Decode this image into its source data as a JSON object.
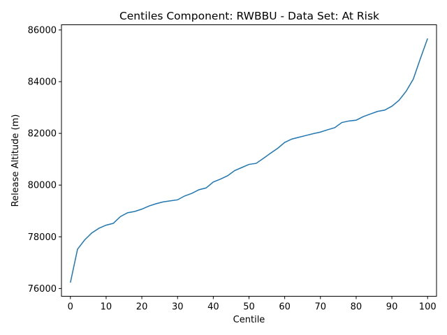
{
  "chart_data": {
    "type": "line",
    "title": "Centiles Component: RWBBU - Data Set: At Risk",
    "xlabel": "Centile",
    "ylabel": "Release Altitude (m)",
    "xlim": [
      -2.5,
      102.5
    ],
    "ylim": [
      75700,
      86200
    ],
    "xticks": [
      0,
      10,
      20,
      30,
      40,
      50,
      60,
      70,
      80,
      90,
      100
    ],
    "xtick_labels": [
      "0",
      "10",
      "20",
      "30",
      "40",
      "50",
      "60",
      "70",
      "80",
      "90",
      "100"
    ],
    "yticks": [
      76000,
      78000,
      80000,
      82000,
      84000,
      86000
    ],
    "ytick_labels": [
      "76000",
      "78000",
      "80000",
      "82000",
      "84000",
      "86000"
    ],
    "grid": false,
    "line_color": "#1f77b4",
    "series": [
      {
        "x": [
          0,
          2,
          4,
          6,
          8,
          10,
          12,
          14,
          16,
          18,
          20,
          22,
          24,
          26,
          28,
          30,
          32,
          34,
          36,
          38,
          40,
          42,
          44,
          46,
          48,
          50,
          52,
          54,
          56,
          58,
          60,
          62,
          64,
          66,
          68,
          70,
          72,
          74,
          76,
          78,
          80,
          82,
          84,
          86,
          88,
          90,
          92,
          94,
          96,
          98,
          100
        ],
        "values": [
          76230,
          77520,
          77880,
          78150,
          78330,
          78450,
          78520,
          78780,
          78930,
          78980,
          79070,
          79190,
          79280,
          79350,
          79390,
          79430,
          79580,
          79680,
          79820,
          79890,
          80120,
          80230,
          80360,
          80560,
          80680,
          80800,
          80840,
          81030,
          81230,
          81420,
          81650,
          81780,
          81850,
          81920,
          81990,
          82050,
          82140,
          82220,
          82420,
          82480,
          82510,
          82650,
          82750,
          82850,
          82900,
          83050,
          83280,
          83630,
          84100,
          84900,
          85670
        ]
      }
    ]
  }
}
